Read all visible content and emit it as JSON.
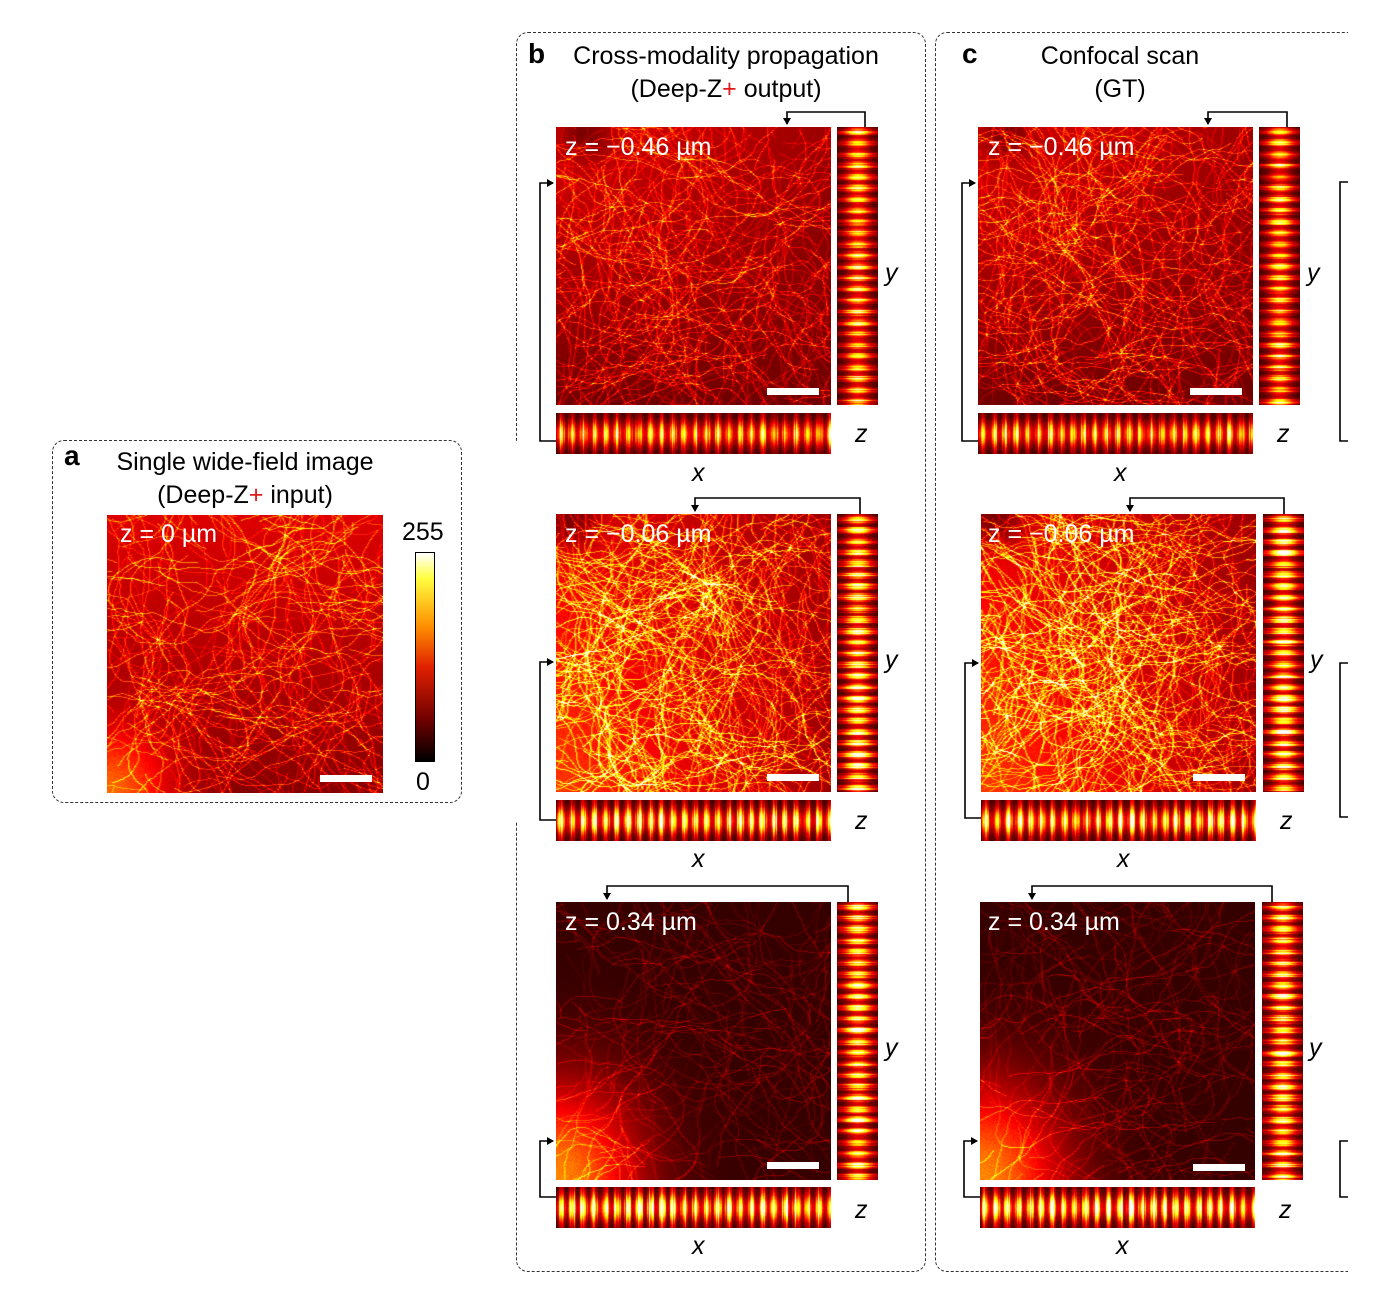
{
  "panel_a": {
    "letter": "a",
    "title_line1": "Single wide-field image",
    "title_line2_pre": "(Deep-Z",
    "title_line2_plus": "+",
    "title_line2_post": " input)",
    "image": {
      "z_label": "z = 0 µm"
    },
    "colorbar": {
      "max_label": "255",
      "min_label": "0",
      "colormap": [
        "#ffffff",
        "#ffff40",
        "#ff9000",
        "#e02000",
        "#700000",
        "#000000"
      ]
    }
  },
  "panel_b": {
    "letter": "b",
    "title_line1": "Cross-modality propagation",
    "title_line2_pre": "(Deep-Z",
    "title_line2_plus": "+",
    "title_line2_post": " output)",
    "rows": [
      {
        "z_label": "z = −0.46 µm",
        "axis_y": "y",
        "axis_z": "z",
        "axis_x": "x"
      },
      {
        "z_label": "z = −0.06 µm",
        "axis_y": "y",
        "axis_z": "z",
        "axis_x": "x"
      },
      {
        "z_label": "z = 0.34 µm",
        "axis_y": "y",
        "axis_z": "z",
        "axis_x": "x"
      }
    ]
  },
  "panel_c": {
    "letter": "c",
    "title_line1": "Confocal scan",
    "title_line2": "(GT)",
    "rows": [
      {
        "z_label": "z = −0.46 µm",
        "axis_y": "y",
        "axis_z": "z",
        "axis_x": "x"
      },
      {
        "z_label": "z = −0.06 µm",
        "axis_y": "y",
        "axis_z": "z",
        "axis_x": "x"
      },
      {
        "z_label": "z = 0.34 µm",
        "axis_y": "y",
        "axis_z": "z",
        "axis_x": "x"
      }
    ]
  }
}
